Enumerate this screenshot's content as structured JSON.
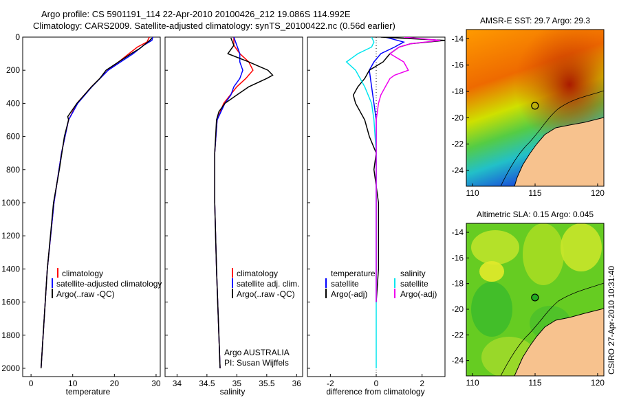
{
  "header": {
    "line1": "Argo profile: CS 5901191_114 22-Apr-2010 20100426_212 19.086S 114.992E",
    "line2": "Climatology: CARS2009. Satellite-adjusted climatology: synTS_20100422.nc (0.56d earlier)"
  },
  "colors": {
    "climatology": "#ff0000",
    "satellite": "#0000ff",
    "argo": "#000000",
    "sat_salinity": "#00e5ee",
    "argo_salinity": "#ee00ee"
  },
  "chart_data": [
    {
      "type": "line",
      "name": "temperature-profile",
      "xlabel": "temperature",
      "ylabel": "",
      "xlim": [
        -2,
        31
      ],
      "ylim": [
        2050,
        0
      ],
      "xticks": [
        "0",
        "10",
        "20",
        "30"
      ],
      "yticks": [
        "0",
        "200",
        "400",
        "600",
        "800",
        "1000",
        "1200",
        "1400",
        "1600",
        "1800",
        "2000"
      ],
      "legend": [
        "climatology",
        "satellite-adjusted climatology",
        "Argo(..raw -QC)"
      ],
      "series": [
        {
          "name": "climatology",
          "depth": [
            0,
            30,
            60,
            100,
            150,
            200,
            300,
            400,
            500,
            700,
            1000,
            1400,
            2000
          ],
          "values": [
            28.4,
            27.8,
            25.5,
            23.5,
            21.0,
            18.5,
            14.5,
            11.0,
            9.0,
            7.3,
            5.5,
            3.9,
            2.4
          ]
        },
        {
          "name": "satellite-adjusted climatology",
          "depth": [
            0,
            20,
            50,
            100,
            150,
            200,
            300,
            400,
            500,
            700,
            1000,
            1400,
            2000
          ],
          "values": [
            29.2,
            29.0,
            27.0,
            24.5,
            21.5,
            18.5,
            14.6,
            11.2,
            9.0,
            7.3,
            5.5,
            3.9,
            2.4
          ]
        },
        {
          "name": "Argo(..raw -QC)",
          "depth": [
            5,
            20,
            40,
            70,
            100,
            150,
            200,
            250,
            300,
            400,
            480,
            500,
            600,
            800,
            1000,
            1400,
            1800,
            2000
          ],
          "values": [
            29.0,
            28.5,
            27.5,
            26.0,
            24.0,
            21.0,
            18.0,
            16.5,
            14.5,
            11.0,
            8.8,
            9.0,
            8.0,
            6.8,
            5.4,
            3.9,
            2.9,
            2.4
          ]
        }
      ]
    },
    {
      "type": "line",
      "name": "salinity-profile",
      "xlabel": "salinity",
      "ylabel": "",
      "xlim": [
        33.8,
        36.1
      ],
      "ylim": [
        2050,
        0
      ],
      "xticks": [
        "34",
        "34.5",
        "35",
        "35.5",
        "36"
      ],
      "legend": [
        "climatology",
        "satellite adj. clim.",
        "Argo(..raw -QC)"
      ],
      "annotation": [
        "Argo AUSTRALIA",
        "PI: Susan Wijffels"
      ],
      "series": [
        {
          "name": "climatology",
          "depth": [
            0,
            50,
            100,
            150,
            200,
            250,
            300,
            400,
            500,
            700,
            1000,
            1400,
            2000
          ],
          "values": [
            34.95,
            34.95,
            35.05,
            35.2,
            35.27,
            35.15,
            35.0,
            34.78,
            34.67,
            34.63,
            34.63,
            34.66,
            34.72
          ]
        },
        {
          "name": "satellite adj. clim.",
          "depth": [
            0,
            50,
            100,
            150,
            200,
            250,
            300,
            350,
            400,
            500,
            700,
            1000,
            1400,
            2000
          ],
          "values": [
            34.95,
            35.0,
            35.05,
            35.05,
            35.1,
            35.05,
            34.95,
            34.9,
            34.8,
            34.67,
            34.63,
            34.63,
            34.66,
            34.72
          ]
        },
        {
          "name": "Argo(..raw -QC)",
          "depth": [
            5,
            50,
            100,
            150,
            200,
            230,
            250,
            300,
            350,
            400,
            450,
            500,
            700,
            1000,
            1400,
            2000
          ],
          "values": [
            34.9,
            34.95,
            34.85,
            35.2,
            35.52,
            35.6,
            35.5,
            35.2,
            35.0,
            34.8,
            34.7,
            34.66,
            34.63,
            34.63,
            34.66,
            34.72
          ]
        }
      ]
    },
    {
      "type": "line",
      "name": "difference-profile",
      "xlabel": "difference from climatology",
      "ylabel": "",
      "xlim": [
        -3,
        3
      ],
      "ylim": [
        2050,
        0
      ],
      "xticks": [
        "-2",
        "0",
        "2"
      ],
      "legend_temperature": {
        "title": "temperature",
        "items": [
          "satellite",
          "Argo(-adj)"
        ]
      },
      "legend_salinity": {
        "title": "salinity",
        "items": [
          "satellite",
          "Argo(-adj)"
        ]
      },
      "series": [
        {
          "name": "temperature satellite",
          "depth": [
            0,
            30,
            60,
            100,
            150,
            200,
            300,
            400,
            500,
            700,
            1000,
            1400,
            1600
          ],
          "values": [
            0.4,
            1.2,
            0.8,
            0.2,
            -0.1,
            -0.3,
            -0.2,
            -0.1,
            0.0,
            0.0,
            0.0,
            0.0,
            0.0
          ]
        },
        {
          "name": "temperature Argo(-adj)",
          "depth": [
            0,
            20,
            40,
            60,
            100,
            150,
            200,
            250,
            300,
            350,
            400,
            500,
            600,
            700,
            800,
            1000,
            1400,
            1600
          ],
          "values": [
            0.2,
            3.0,
            1.5,
            1.0,
            0.6,
            0.3,
            -0.3,
            -0.5,
            -0.8,
            -1.0,
            -0.9,
            -0.5,
            -0.3,
            0.0,
            -0.1,
            0.1,
            0.1,
            0.0
          ]
        },
        {
          "name": "salinity satellite",
          "depth": [
            0,
            30,
            60,
            100,
            150,
            200,
            300,
            400,
            500,
            700,
            1000,
            1400,
            2000
          ],
          "values": [
            -0.2,
            -0.1,
            -0.2,
            -0.8,
            -1.3,
            -0.9,
            -0.5,
            -0.2,
            -0.1,
            0.0,
            0.0,
            0.0,
            0.0
          ]
        },
        {
          "name": "salinity Argo(-adj)",
          "depth": [
            0,
            20,
            40,
            60,
            100,
            150,
            200,
            230,
            250,
            300,
            350,
            400,
            450,
            500,
            600,
            1000,
            1600
          ],
          "values": [
            1.2,
            2.8,
            1.5,
            1.0,
            0.6,
            1.2,
            1.4,
            0.8,
            0.6,
            0.4,
            0.2,
            0.1,
            0.05,
            0.0,
            0.0,
            0.0,
            0.0
          ]
        }
      ]
    }
  ],
  "maps": [
    {
      "title": "AMSR-E SST: 29.7 Argo: 29.3",
      "xticks": [
        "110",
        "115",
        "120"
      ],
      "yticks": [
        "-14",
        "-16",
        "-18",
        "-20",
        "-22",
        "-24"
      ],
      "xlim": [
        109.5,
        120.5
      ],
      "ylim": [
        -25.2,
        -13.3
      ],
      "argo_position": {
        "lon": 114.992,
        "lat": -19.086
      }
    },
    {
      "title": "Altimetric SLA: 0.15 Argo: 0.045",
      "xticks": [
        "110",
        "115",
        "120"
      ],
      "yticks": [
        "-14",
        "-16",
        "-18",
        "-20",
        "-22",
        "-24"
      ],
      "xlim": [
        109.5,
        120.5
      ],
      "ylim": [
        -25.2,
        -13.3
      ],
      "argo_position": {
        "lon": 114.992,
        "lat": -19.086
      }
    }
  ],
  "footer": {
    "credit": "CSIRO 27-Apr-2010 10:31:40"
  }
}
